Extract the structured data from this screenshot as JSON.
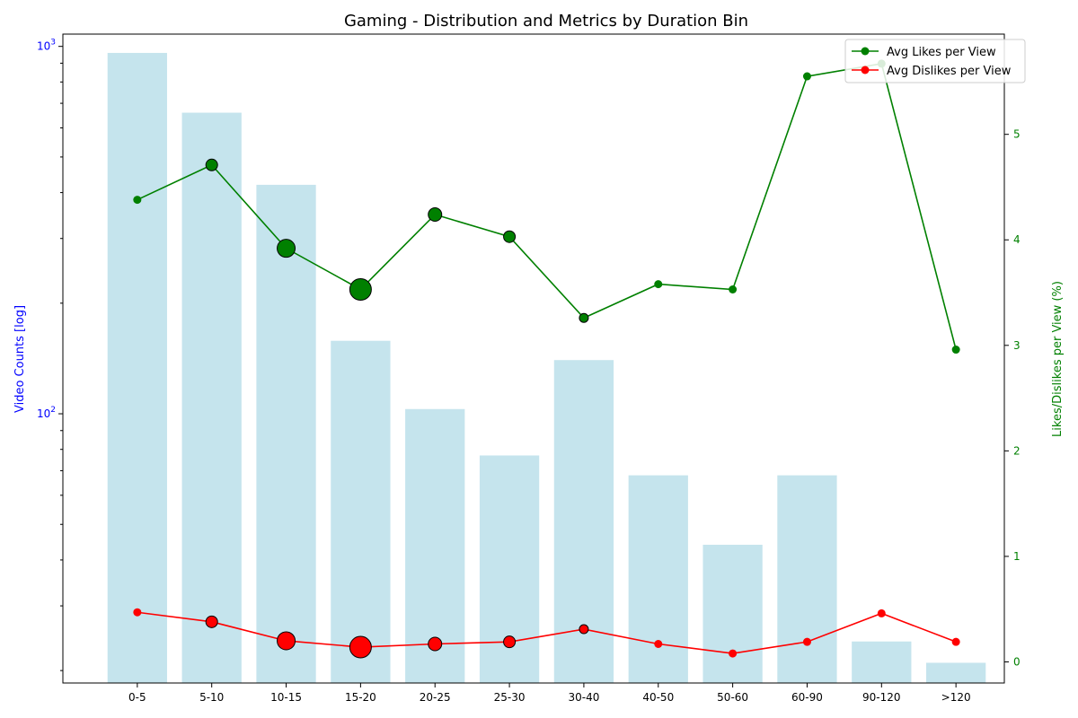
{
  "chart_data": {
    "type": "bar+line",
    "title": "Gaming - Distribution and Metrics by Duration Bin",
    "categories": [
      "0-5",
      "5-10",
      "10-15",
      "15-20",
      "20-25",
      "25-30",
      "30-40",
      "40-50",
      "50-60",
      "60-90",
      "90-120",
      ">120"
    ],
    "bar_series": {
      "name": "Video Counts",
      "values": [
        960,
        660,
        420,
        158,
        103,
        77,
        140,
        68,
        44,
        68,
        24,
        21
      ],
      "color": "#add8e6"
    },
    "left_axis": {
      "label": "Video Counts [log]",
      "scale": "log",
      "range": [
        18.5,
        1080
      ],
      "major_ticks": [
        100,
        1000
      ],
      "major_tick_labels": [
        "10^2",
        "10^3"
      ],
      "minor_ticks": [
        20,
        30,
        40,
        50,
        60,
        70,
        80,
        90,
        200,
        300,
        400,
        500,
        600,
        700,
        800,
        900
      ],
      "color": "#0000ff"
    },
    "right_axis": {
      "label": "Likes/Dislikes per View (%)",
      "scale": "linear",
      "range": [
        -0.2,
        5.95
      ],
      "ticks": [
        0,
        1,
        2,
        3,
        4,
        5
      ],
      "color": "#008000"
    },
    "line_series": [
      {
        "name": "Avg Likes per View",
        "values": [
          4.38,
          4.71,
          3.92,
          3.53,
          4.24,
          4.03,
          3.26,
          3.58,
          3.53,
          5.55,
          5.67,
          2.96
        ],
        "marker_sizes": [
          4.5,
          6.5,
          10,
          12,
          7.5,
          6.5,
          5,
          4.5,
          4.5,
          4.5,
          4.5,
          4.5
        ],
        "color": "#008000"
      },
      {
        "name": "Avg Dislikes per View",
        "values": [
          0.47,
          0.38,
          0.2,
          0.14,
          0.17,
          0.19,
          0.31,
          0.17,
          0.08,
          0.19,
          0.46,
          0.19
        ],
        "marker_sizes": [
          4.5,
          6.5,
          10,
          12,
          7.5,
          6.5,
          5,
          4.5,
          4.5,
          4.5,
          4.5,
          4.5
        ],
        "color": "#ff0000"
      }
    ],
    "legend_position": "top-right",
    "grid": false
  }
}
